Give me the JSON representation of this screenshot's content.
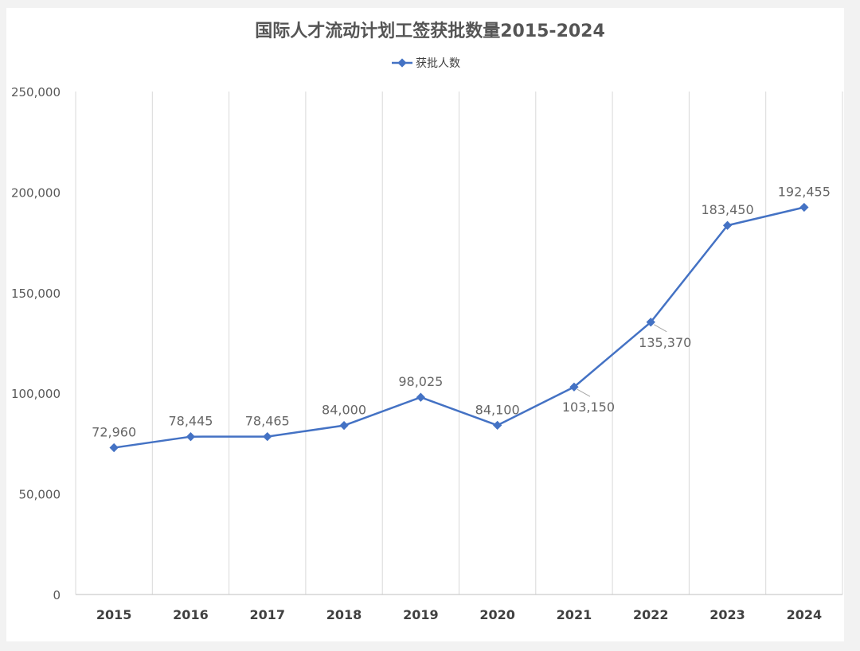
{
  "chart_data": {
    "type": "line",
    "title": "国际人才流动计划工签获批数量2015-2024",
    "categories": [
      "2015",
      "2016",
      "2017",
      "2018",
      "2019",
      "2020",
      "2021",
      "2022",
      "2023",
      "2024"
    ],
    "series": [
      {
        "name": "获批人数",
        "color": "#4472c4",
        "values": [
          72960,
          78445,
          78465,
          84000,
          98025,
          84100,
          103150,
          135370,
          183450,
          192455
        ],
        "labels": [
          "72,960",
          "78,445",
          "78,465",
          "84,000",
          "98,025",
          "84,100",
          "103,150",
          "135,370",
          "183,450",
          "192,455"
        ]
      }
    ],
    "ylim": [
      0,
      250000
    ],
    "yticks": [
      0,
      50000,
      100000,
      150000,
      200000,
      250000
    ],
    "ytick_labels": [
      "0",
      "50,000",
      "100,000",
      "150,000",
      "200,000",
      "250,000"
    ],
    "xlabel": "",
    "ylabel": "",
    "grid": "vertical",
    "legend": "top-center"
  }
}
